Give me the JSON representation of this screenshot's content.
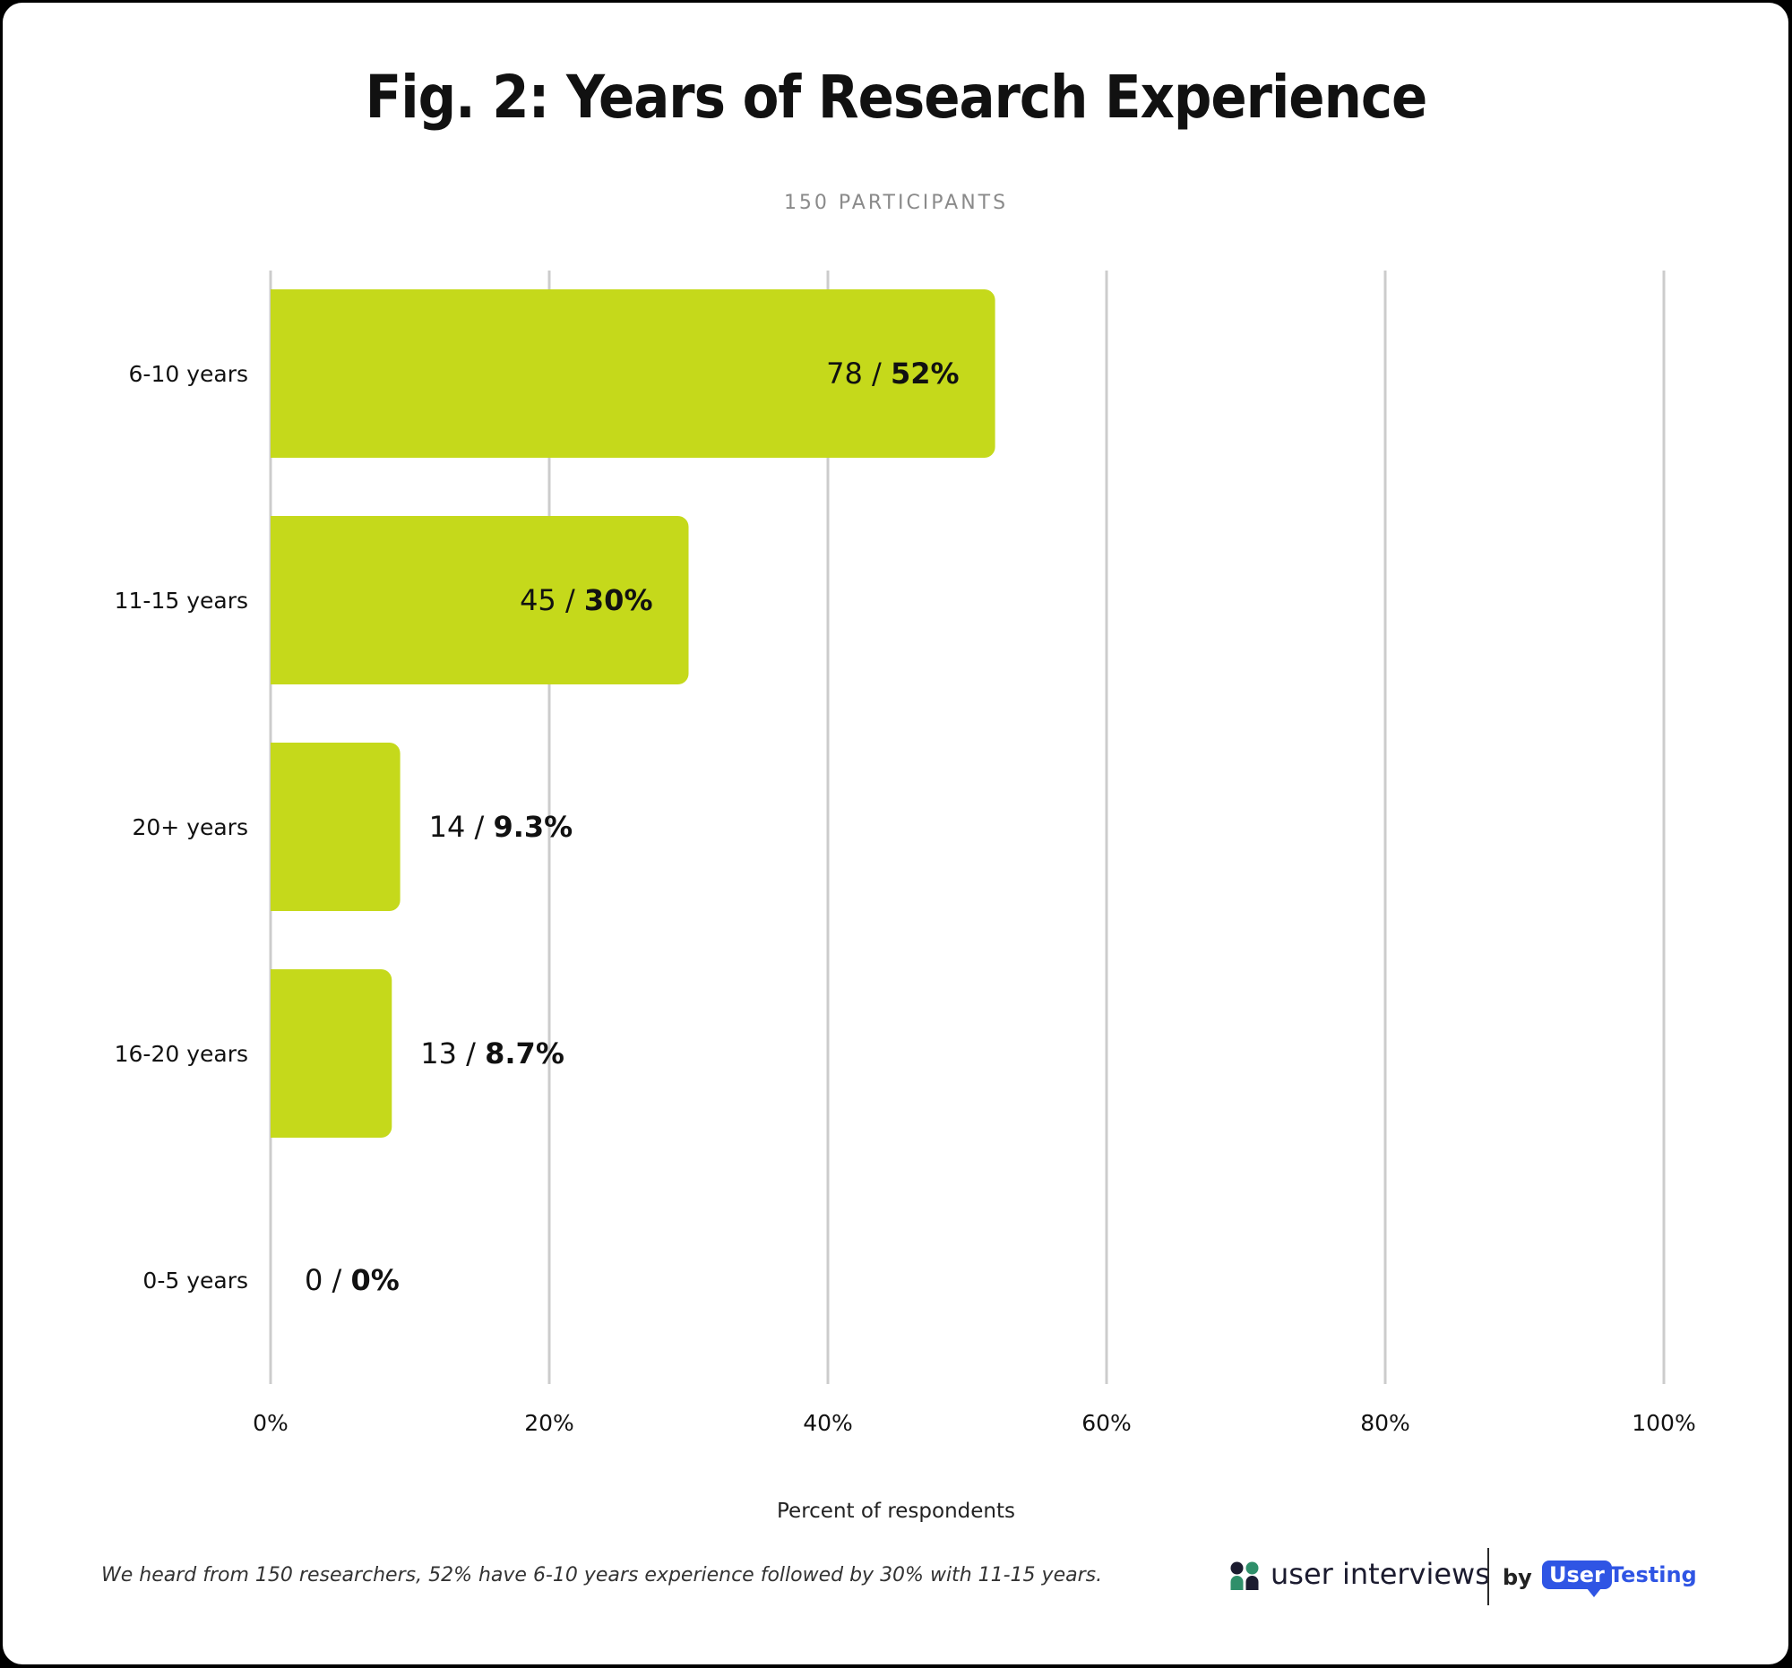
{
  "title_prefix": "Fig. 2:",
  "title_rest": " Years of Research Experience",
  "subtitle": "150 PARTICIPANTS",
  "caption": "We heard from 150 researchers, 52% have 6-10 years experience followed by 30% with 11-15 years.",
  "logo": {
    "brand": "user interviews",
    "by": "by",
    "partner_part1": "User",
    "partner_part2": "Testing"
  },
  "colors": {
    "bar": "#c5d91b",
    "grid": "#cccccc",
    "text": "#111111",
    "partner": "#2f55e4"
  },
  "chart_data": {
    "type": "bar",
    "orientation": "horizontal",
    "categories": [
      "6-10 years",
      "11-15 years",
      "20+ years",
      "16-20 years",
      "0-5 years"
    ],
    "counts": [
      78,
      45,
      14,
      13,
      0
    ],
    "values": [
      52,
      30,
      9.3,
      8.7,
      0
    ],
    "value_labels": [
      "52%",
      "30%",
      "9.3%",
      "8.7%",
      "0%"
    ],
    "count_labels": [
      "78",
      "45",
      "14",
      "13",
      "0"
    ],
    "xlabel": "Percent of respondents",
    "xlim": [
      0,
      100
    ],
    "x_ticks": [
      0,
      20,
      40,
      60,
      80,
      100
    ],
    "x_tick_labels": [
      "0%",
      "20%",
      "40%",
      "60%",
      "80%",
      "100%"
    ],
    "grid": true
  }
}
